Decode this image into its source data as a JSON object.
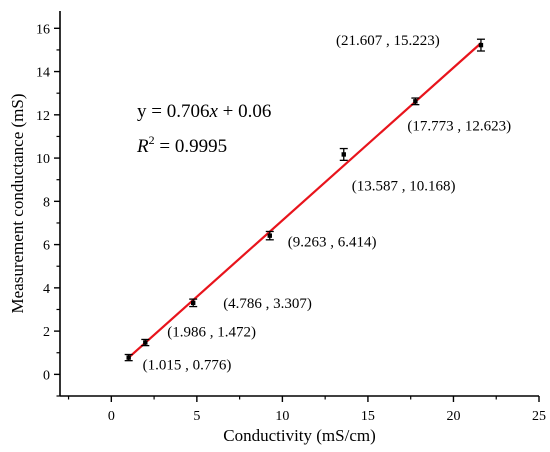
{
  "chart_data": {
    "type": "scatter",
    "xlabel": "Conductivity (mS/cm)",
    "ylabel": "Measurement conductance (mS)",
    "xlim": [
      -3,
      25
    ],
    "ylim": [
      -1,
      16.8
    ],
    "x_ticks": [
      0,
      5,
      10,
      15,
      20,
      25
    ],
    "y_ticks": [
      0,
      2,
      4,
      6,
      8,
      10,
      12,
      14,
      16
    ],
    "grid": false,
    "points": [
      {
        "x": 1.015,
        "y": 0.776,
        "label": "(1.015 , 0.776)",
        "err": 0.05
      },
      {
        "x": 1.986,
        "y": 1.472,
        "label": "(1.986 , 1.472)",
        "err": 0.05
      },
      {
        "x": 4.786,
        "y": 3.307,
        "label": "(4.786 , 3.307)",
        "err": 0.08
      },
      {
        "x": 9.263,
        "y": 6.414,
        "label": "(9.263 , 6.414)",
        "err": 0.1
      },
      {
        "x": 13.587,
        "y": 10.168,
        "label": "(13.587 , 10.168)",
        "err": 0.18
      },
      {
        "x": 17.773,
        "y": 12.623,
        "label": "(17.773 , 12.623)",
        "err": 0.06
      },
      {
        "x": 21.607,
        "y": 15.223,
        "label": "(21.607 , 15.223)",
        "err": 0.18
      }
    ],
    "fit": {
      "slope": 0.706,
      "intercept": 0.06,
      "x_range": [
        0.92,
        21.607
      ],
      "equation": "y = 0.706x + 0.06",
      "r_squared": "R² = 0.9995",
      "color": "#e8141c"
    }
  }
}
